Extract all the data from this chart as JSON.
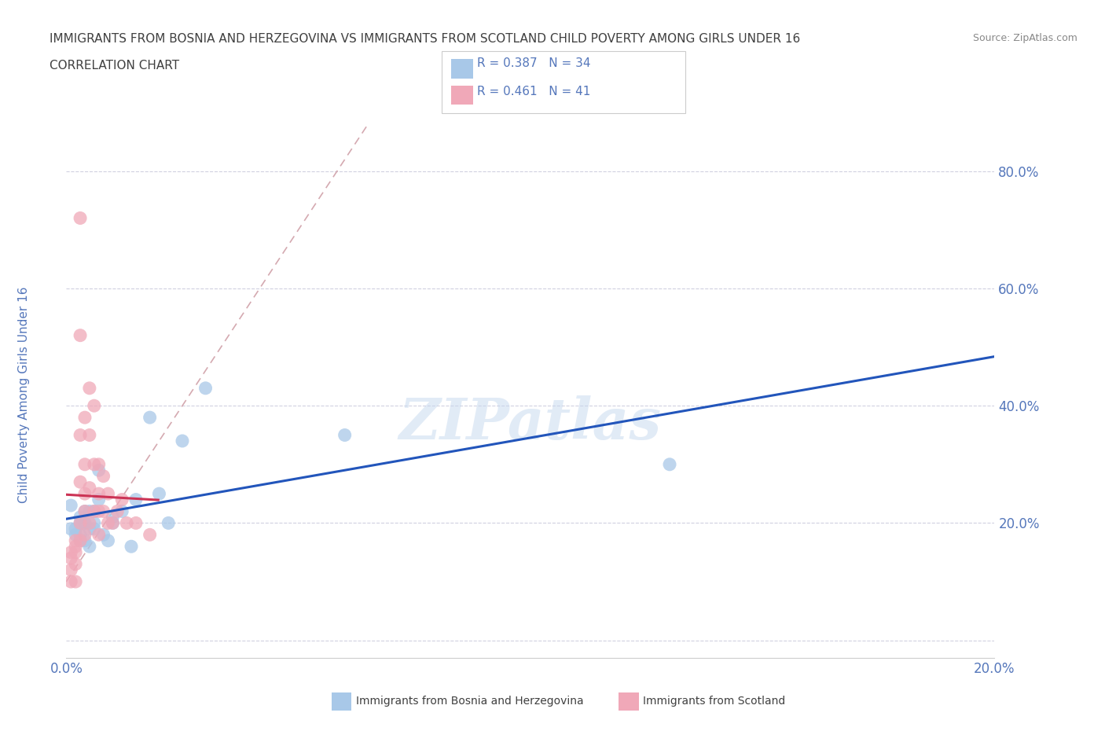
{
  "title_line1": "IMMIGRANTS FROM BOSNIA AND HERZEGOVINA VS IMMIGRANTS FROM SCOTLAND CHILD POVERTY AMONG GIRLS UNDER 16",
  "title_line2": "CORRELATION CHART",
  "source": "Source: ZipAtlas.com",
  "ylabel": "Child Poverty Among Girls Under 16",
  "xlim": [
    0.0,
    0.2
  ],
  "ylim": [
    -0.03,
    0.88
  ],
  "yticks": [
    0.0,
    0.2,
    0.4,
    0.6,
    0.8
  ],
  "ytick_labels": [
    "",
    "20.0%",
    "40.0%",
    "60.0%",
    "80.0%"
  ],
  "xticks": [
    0.0,
    0.05,
    0.1,
    0.15,
    0.2
  ],
  "xtick_labels": [
    "0.0%",
    "",
    "",
    "",
    "20.0%"
  ],
  "r_bosnia": 0.387,
  "n_bosnia": 34,
  "r_scotland": 0.461,
  "n_scotland": 41,
  "color_bosnia": "#a8c8e8",
  "color_scotland": "#f0a8b8",
  "trend_color_bosnia": "#2255bb",
  "trend_color_scotland": "#cc3355",
  "trend_dash_color": "#d0a0a8",
  "watermark": "ZIPatlas",
  "bosnia_x": [
    0.001,
    0.001,
    0.002,
    0.002,
    0.003,
    0.003,
    0.003,
    0.003,
    0.004,
    0.004,
    0.004,
    0.004,
    0.005,
    0.005,
    0.005,
    0.006,
    0.006,
    0.006,
    0.007,
    0.007,
    0.008,
    0.009,
    0.01,
    0.01,
    0.012,
    0.014,
    0.015,
    0.018,
    0.02,
    0.022,
    0.025,
    0.03,
    0.06,
    0.13
  ],
  "bosnia_y": [
    0.19,
    0.23,
    0.19,
    0.18,
    0.21,
    0.2,
    0.18,
    0.17,
    0.22,
    0.2,
    0.2,
    0.17,
    0.22,
    0.19,
    0.16,
    0.22,
    0.2,
    0.19,
    0.24,
    0.29,
    0.18,
    0.17,
    0.21,
    0.2,
    0.22,
    0.16,
    0.24,
    0.38,
    0.25,
    0.2,
    0.34,
    0.43,
    0.35,
    0.3
  ],
  "scotland_x": [
    0.001,
    0.001,
    0.001,
    0.001,
    0.002,
    0.002,
    0.002,
    0.002,
    0.002,
    0.003,
    0.003,
    0.003,
    0.003,
    0.003,
    0.003,
    0.004,
    0.004,
    0.004,
    0.004,
    0.004,
    0.005,
    0.005,
    0.005,
    0.005,
    0.006,
    0.006,
    0.006,
    0.007,
    0.007,
    0.007,
    0.007,
    0.008,
    0.008,
    0.009,
    0.009,
    0.01,
    0.011,
    0.012,
    0.013,
    0.015,
    0.018
  ],
  "scotland_y": [
    0.15,
    0.14,
    0.12,
    0.1,
    0.17,
    0.16,
    0.15,
    0.13,
    0.1,
    0.72,
    0.52,
    0.35,
    0.27,
    0.2,
    0.17,
    0.38,
    0.3,
    0.25,
    0.22,
    0.18,
    0.43,
    0.35,
    0.26,
    0.2,
    0.4,
    0.3,
    0.22,
    0.3,
    0.25,
    0.22,
    0.18,
    0.28,
    0.22,
    0.25,
    0.2,
    0.2,
    0.22,
    0.24,
    0.2,
    0.2,
    0.18
  ],
  "background_color": "#ffffff",
  "grid_color": "#d0d0e0",
  "title_color": "#404040",
  "axis_label_color": "#5577bb",
  "tick_color": "#5577bb"
}
